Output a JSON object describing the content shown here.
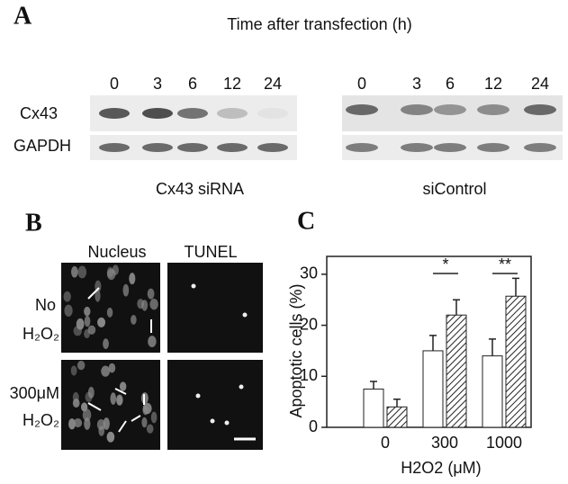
{
  "panel_a": {
    "label": "A",
    "title": "Time after transfection (h)",
    "times_left": [
      "0",
      "3",
      "6",
      "12",
      "24"
    ],
    "times_right": [
      "0",
      "3",
      "6",
      "12",
      "24"
    ],
    "rows": [
      "Cx43",
      "GAPDH"
    ],
    "groups": [
      "Cx43 siRNA",
      "siControl"
    ]
  },
  "panel_b": {
    "label": "B",
    "columns": [
      "Nucleus",
      "TUNEL"
    ],
    "rows": [
      [
        "No",
        "H₂O₂"
      ],
      [
        "300μM",
        "H₂O₂"
      ]
    ]
  },
  "chart_data": {
    "type": "bar",
    "label": "C",
    "xlabel": "H2O2 (μM)",
    "ylabel": "Apoptotic cells (%)",
    "categories": [
      "0",
      "300",
      "1000"
    ],
    "series": [
      {
        "color": "#ffffff",
        "hatch": false,
        "values": [
          7.5,
          15,
          14
        ],
        "errors": [
          1.5,
          3,
          3.3
        ]
      },
      {
        "color": "#ffffff",
        "hatch": true,
        "values": [
          4,
          22,
          25.7
        ],
        "errors": [
          1.5,
          3,
          3.5
        ]
      }
    ],
    "annotations": [
      null,
      "*",
      "**"
    ],
    "ylim": [
      0,
      33.5
    ],
    "yticks": [
      0,
      10,
      20,
      30
    ]
  }
}
